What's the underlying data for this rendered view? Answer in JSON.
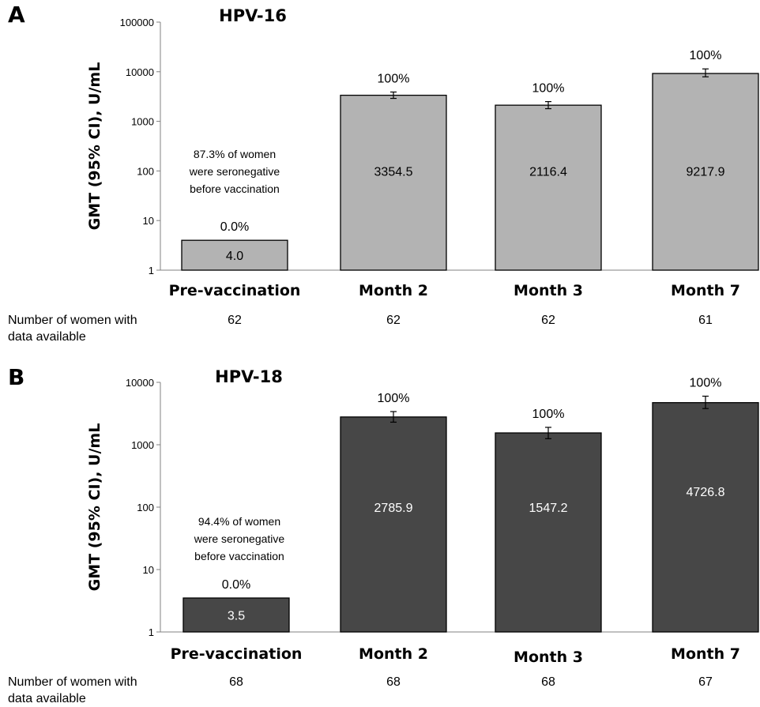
{
  "chart_data": [
    {
      "type": "bar",
      "panel": "A",
      "title": "HPV-16",
      "ylabel": "GMT (95% CI), U/mL",
      "yscale": "log",
      "ylim": [
        1,
        100000
      ],
      "yticks": [
        "1",
        "10",
        "100",
        "1000",
        "10000",
        "100000"
      ],
      "categories": [
        "Pre-vaccination",
        "Month 2",
        "Month 3",
        "Month 7"
      ],
      "values": [
        4.0,
        3354.5,
        2116.4,
        9217.9
      ],
      "value_labels": [
        "4.0",
        "3354.5",
        "2116.4",
        "9217.9"
      ],
      "ci_low": [
        null,
        2900,
        1800,
        7900
      ],
      "ci_high": [
        null,
        3900,
        2500,
        11400
      ],
      "seropositive": [
        "0.0%",
        "100%",
        "100%",
        "100%"
      ],
      "annotation": [
        "87.3% of women",
        "were seronegative",
        "before vaccination"
      ],
      "n_label": [
        "Number of women with",
        "data available"
      ],
      "n": [
        "62",
        "62",
        "62",
        "61"
      ],
      "bar_color": "#b3b3b3",
      "value_text_color": "#000000"
    },
    {
      "type": "bar",
      "panel": "B",
      "title": "HPV-18",
      "ylabel": "GMT (95% CI), U/mL",
      "yscale": "log",
      "ylim": [
        1,
        10000
      ],
      "yticks": [
        "1",
        "10",
        "100",
        "1000",
        "10000"
      ],
      "categories": [
        "Pre-vaccination",
        "Month 2",
        "Month 3",
        "Month 7"
      ],
      "values": [
        3.5,
        2785.9,
        1547.2,
        4726.8
      ],
      "value_labels": [
        "3.5",
        "2785.9",
        "1547.2",
        "4726.8"
      ],
      "ci_low": [
        null,
        2300,
        1250,
        3800
      ],
      "ci_high": [
        null,
        3400,
        1900,
        6000
      ],
      "seropositive": [
        "0.0%",
        "100%",
        "100%",
        "100%"
      ],
      "annotation": [
        "94.4% of women",
        "were seronegative",
        "before vaccination"
      ],
      "n_label": [
        "Number of women with",
        "data available"
      ],
      "n": [
        "68",
        "68",
        "68",
        "67"
      ],
      "bar_color": "#474747",
      "value_text_color": "#ffffff"
    }
  ]
}
